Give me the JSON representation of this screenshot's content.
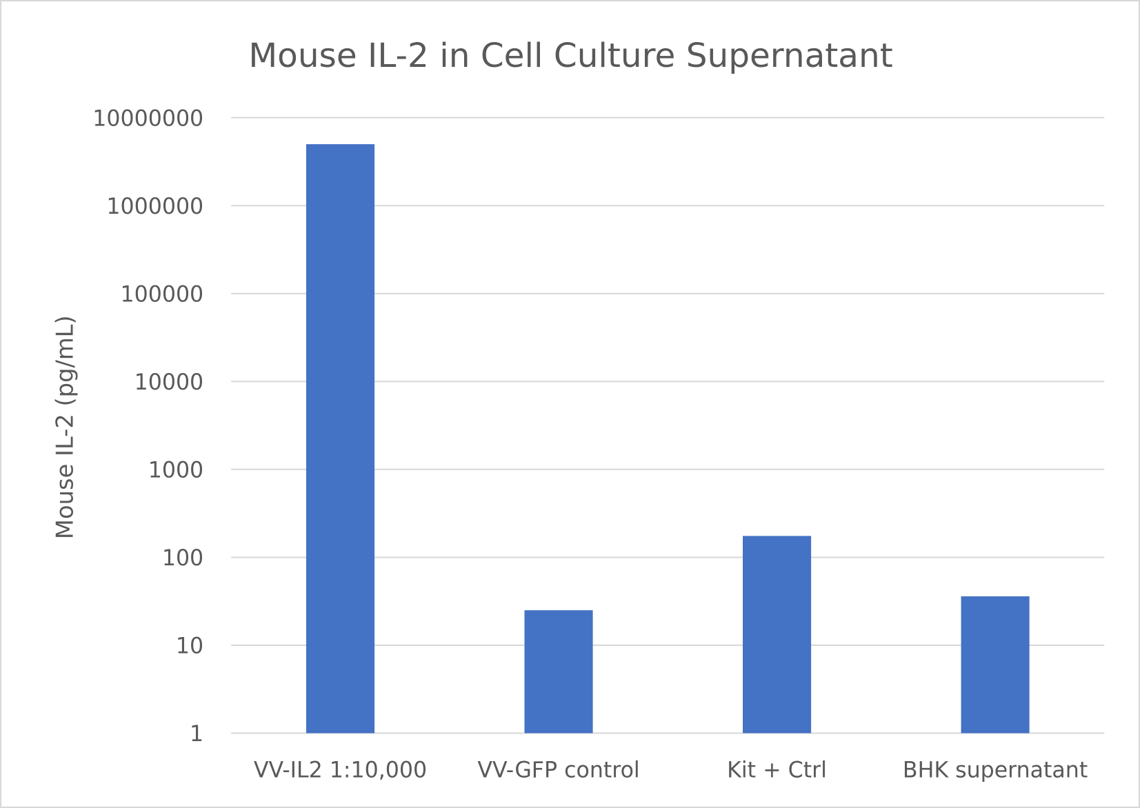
{
  "chart_data": {
    "type": "bar",
    "title": "Mouse IL-2 in Cell Culture Supernatant",
    "xlabel": "",
    "ylabel": "Mouse IL-2 (pg/mL)",
    "yscale": "log",
    "ylim": [
      1,
      10000000
    ],
    "yticks": [
      "1",
      "10",
      "100",
      "1000",
      "10000",
      "100000",
      "1000000",
      "10000000"
    ],
    "grid": true,
    "categories": [
      "VV-IL2 1:10,000",
      "VV-GFP control",
      "Kit + Ctrl",
      "BHK supernatant"
    ],
    "values": [
      5000000,
      25,
      175,
      36
    ],
    "bar_color": "#4472C4",
    "grid_color": "#D9D9D9",
    "text_color": "#595959"
  }
}
